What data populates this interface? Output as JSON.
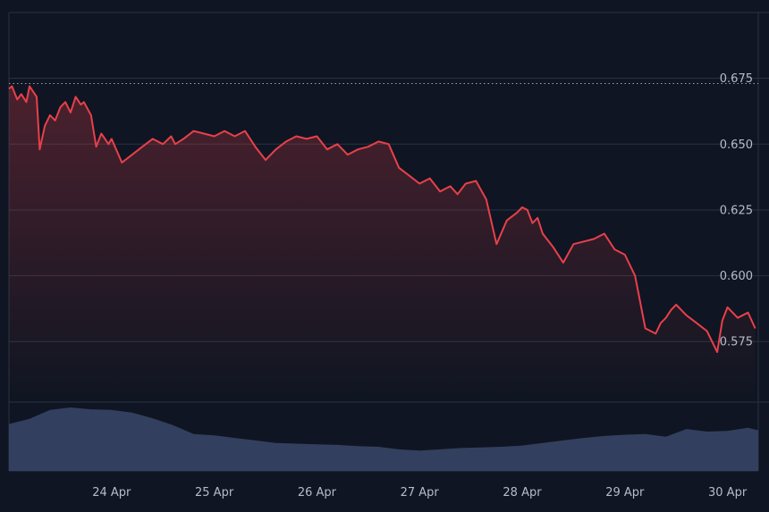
{
  "colors": {
    "background": "#0f1522",
    "grid": "#2a3242",
    "line_down": "#e8404a",
    "line_up": "#3fbf7f",
    "reference": "#9aa2b0",
    "volume": "#3a4668",
    "tick_text": "#b6bcc8"
  },
  "chart_data": {
    "type": "line",
    "title": "",
    "xlabel": "",
    "ylabel": "",
    "ylim": [
      0.552,
      0.7
    ],
    "grid": true,
    "y_ticks": [
      0.675,
      0.65,
      0.625,
      0.6,
      0.575
    ],
    "y_tick_labels": [
      "0.675",
      "0.650",
      "0.625",
      "0.600",
      "0.575"
    ],
    "x_ticks": [
      "24 Apr",
      "25 Apr",
      "26 Apr",
      "27 Apr",
      "28 Apr",
      "29 Apr",
      "30 Apr"
    ],
    "x_tick_days": [
      1,
      2,
      3,
      4,
      5,
      6,
      7
    ],
    "reference_line": 0.673,
    "price": {
      "x_days": [
        0.0,
        0.03,
        0.08,
        0.12,
        0.17,
        0.2,
        0.27,
        0.3,
        0.35,
        0.4,
        0.45,
        0.5,
        0.55,
        0.6,
        0.65,
        0.7,
        0.73,
        0.8,
        0.85,
        0.9,
        0.97,
        1.0,
        1.1,
        1.2,
        1.3,
        1.4,
        1.5,
        1.58,
        1.62,
        1.7,
        1.8,
        1.9,
        2.0,
        2.1,
        2.2,
        2.3,
        2.4,
        2.5,
        2.6,
        2.7,
        2.8,
        2.9,
        3.0,
        3.1,
        3.2,
        3.3,
        3.4,
        3.5,
        3.6,
        3.7,
        3.8,
        3.9,
        4.0,
        4.1,
        4.2,
        4.3,
        4.37,
        4.45,
        4.55,
        4.65,
        4.75,
        4.85,
        4.95,
        5.0,
        5.05,
        5.1,
        5.15,
        5.2,
        5.3,
        5.4,
        5.5,
        5.6,
        5.7,
        5.8,
        5.9,
        6.0,
        6.1,
        6.2,
        6.3,
        6.35,
        6.4,
        6.45,
        6.5,
        6.6,
        6.7,
        6.8,
        6.9,
        6.95,
        7.0,
        7.1,
        7.2,
        7.27
      ],
      "values": [
        0.671,
        0.672,
        0.667,
        0.669,
        0.666,
        0.672,
        0.668,
        0.648,
        0.657,
        0.661,
        0.659,
        0.664,
        0.666,
        0.662,
        0.668,
        0.665,
        0.666,
        0.661,
        0.649,
        0.654,
        0.65,
        0.652,
        0.643,
        0.646,
        0.649,
        0.652,
        0.65,
        0.653,
        0.65,
        0.652,
        0.655,
        0.654,
        0.653,
        0.655,
        0.653,
        0.655,
        0.649,
        0.644,
        0.648,
        0.651,
        0.653,
        0.652,
        0.653,
        0.648,
        0.65,
        0.646,
        0.648,
        0.649,
        0.651,
        0.65,
        0.641,
        0.638,
        0.635,
        0.637,
        0.632,
        0.634,
        0.631,
        0.635,
        0.636,
        0.629,
        0.612,
        0.621,
        0.624,
        0.626,
        0.625,
        0.62,
        0.622,
        0.616,
        0.611,
        0.605,
        0.612,
        0.613,
        0.614,
        0.616,
        0.61,
        0.608,
        0.6,
        0.58,
        0.578,
        0.582,
        0.584,
        0.587,
        0.589,
        0.585,
        0.582,
        0.579,
        0.571,
        0.583,
        0.588,
        0.584,
        0.586,
        0.58
      ]
    },
    "volume": {
      "x_days": [
        0.0,
        0.2,
        0.4,
        0.6,
        0.8,
        1.0,
        1.2,
        1.4,
        1.6,
        1.8,
        2.0,
        2.2,
        2.4,
        2.6,
        2.8,
        3.0,
        3.2,
        3.4,
        3.6,
        3.8,
        4.0,
        4.2,
        4.4,
        4.6,
        4.8,
        5.0,
        5.2,
        5.4,
        5.6,
        5.8,
        6.0,
        6.2,
        6.4,
        6.6,
        6.8,
        7.0,
        7.2,
        7.3
      ],
      "values": [
        0.74,
        0.82,
        0.96,
        1.0,
        0.97,
        0.96,
        0.92,
        0.83,
        0.72,
        0.58,
        0.56,
        0.52,
        0.48,
        0.44,
        0.43,
        0.42,
        0.41,
        0.39,
        0.38,
        0.34,
        0.32,
        0.34,
        0.36,
        0.37,
        0.38,
        0.4,
        0.44,
        0.48,
        0.52,
        0.55,
        0.57,
        0.58,
        0.54,
        0.66,
        0.62,
        0.63,
        0.68,
        0.64
      ]
    }
  }
}
